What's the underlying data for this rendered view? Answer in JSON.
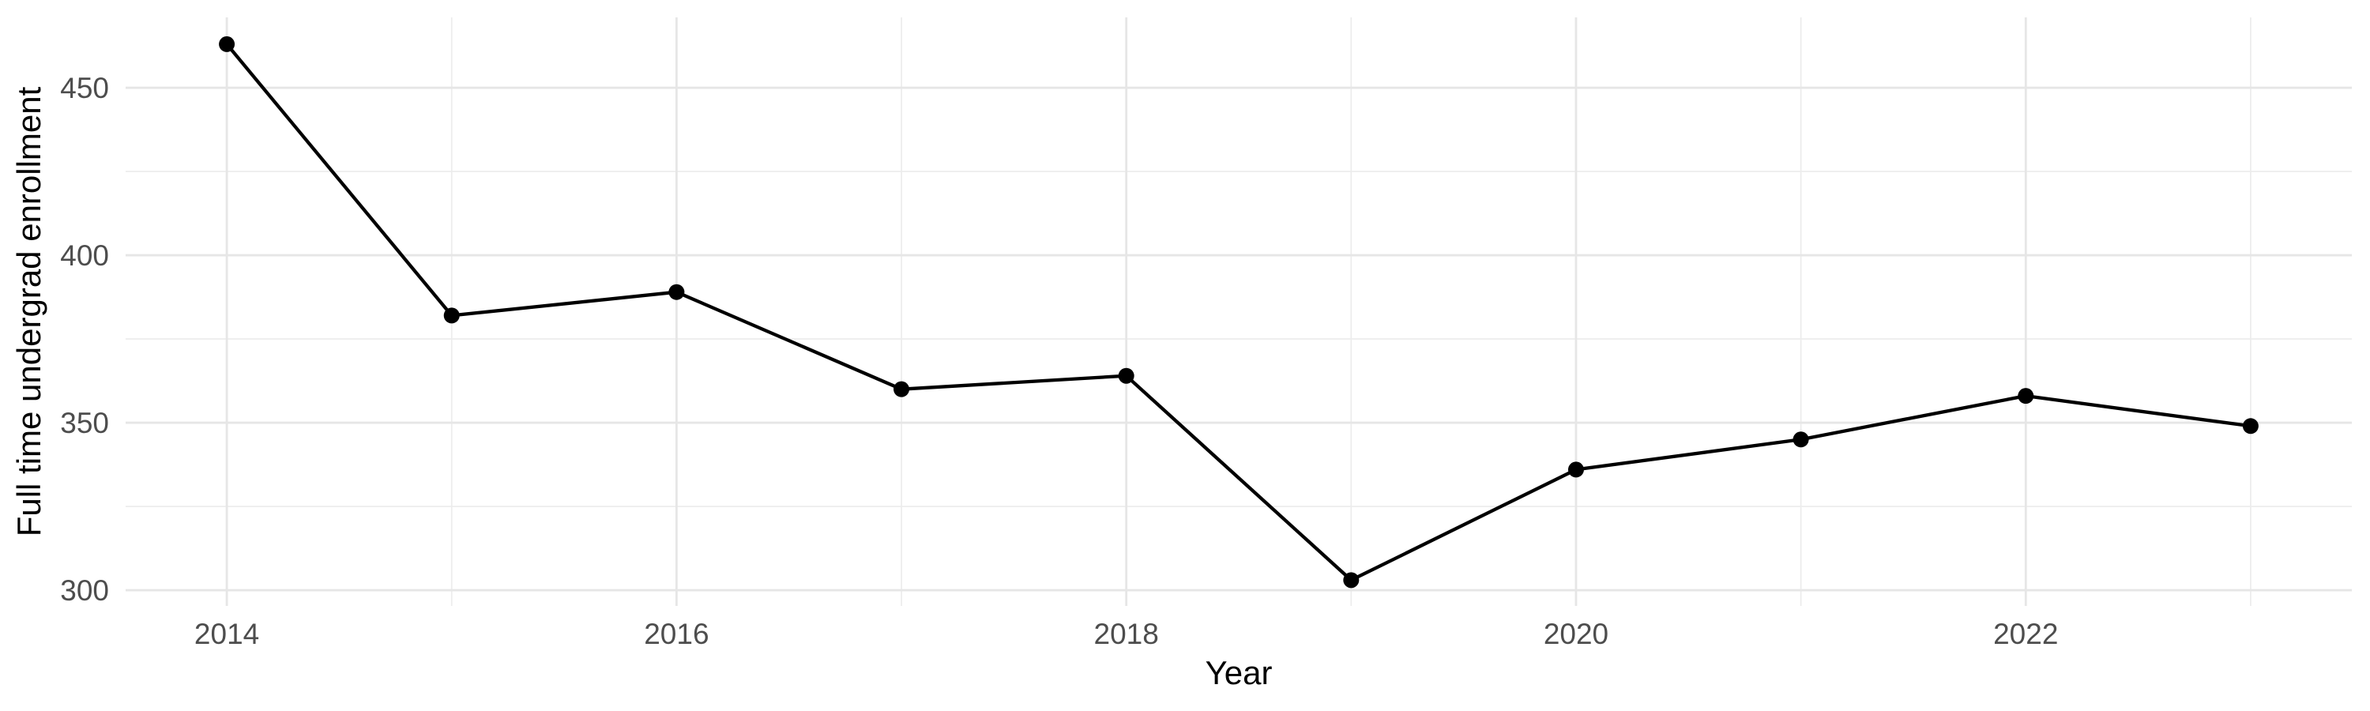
{
  "figure": {
    "background": "#FFFFFF"
  },
  "chart_data": {
    "type": "line",
    "title": "",
    "xlabel": "Year",
    "ylabel": "Full time undergrad enrollment",
    "x": [
      2014,
      2015,
      2016,
      2017,
      2018,
      2019,
      2020,
      2021,
      2022,
      2023
    ],
    "values": [
      463,
      382,
      389,
      360,
      364,
      303,
      336,
      345,
      358,
      349
    ],
    "series_name": "Full time undergrad enrollment",
    "x_major_ticks": [
      2014,
      2016,
      2018,
      2020,
      2022
    ],
    "x_major_tick_labels": [
      "2014",
      "2016",
      "2018",
      "2020",
      "2022"
    ],
    "x_minor_ticks": [
      2015,
      2017,
      2019,
      2021,
      2023
    ],
    "y_major_ticks": [
      300,
      350,
      400,
      450
    ],
    "y_major_tick_labels": [
      "300",
      "350",
      "400",
      "450"
    ],
    "y_minor_ticks": [
      325,
      375,
      425
    ],
    "xlim": [
      2013.55,
      2023.45
    ],
    "ylim": [
      295.3,
      471.0
    ],
    "grid": "major+minor",
    "legend": "none",
    "marker": "filled-circle",
    "colors": {
      "line": "#000000",
      "point": "#000000",
      "grid_major": "#E6E6E6",
      "grid_minor": "#ECECEC",
      "tick_text": "#4D4D4D",
      "axis_title_text": "#000000",
      "background": "#FFFFFF"
    }
  }
}
